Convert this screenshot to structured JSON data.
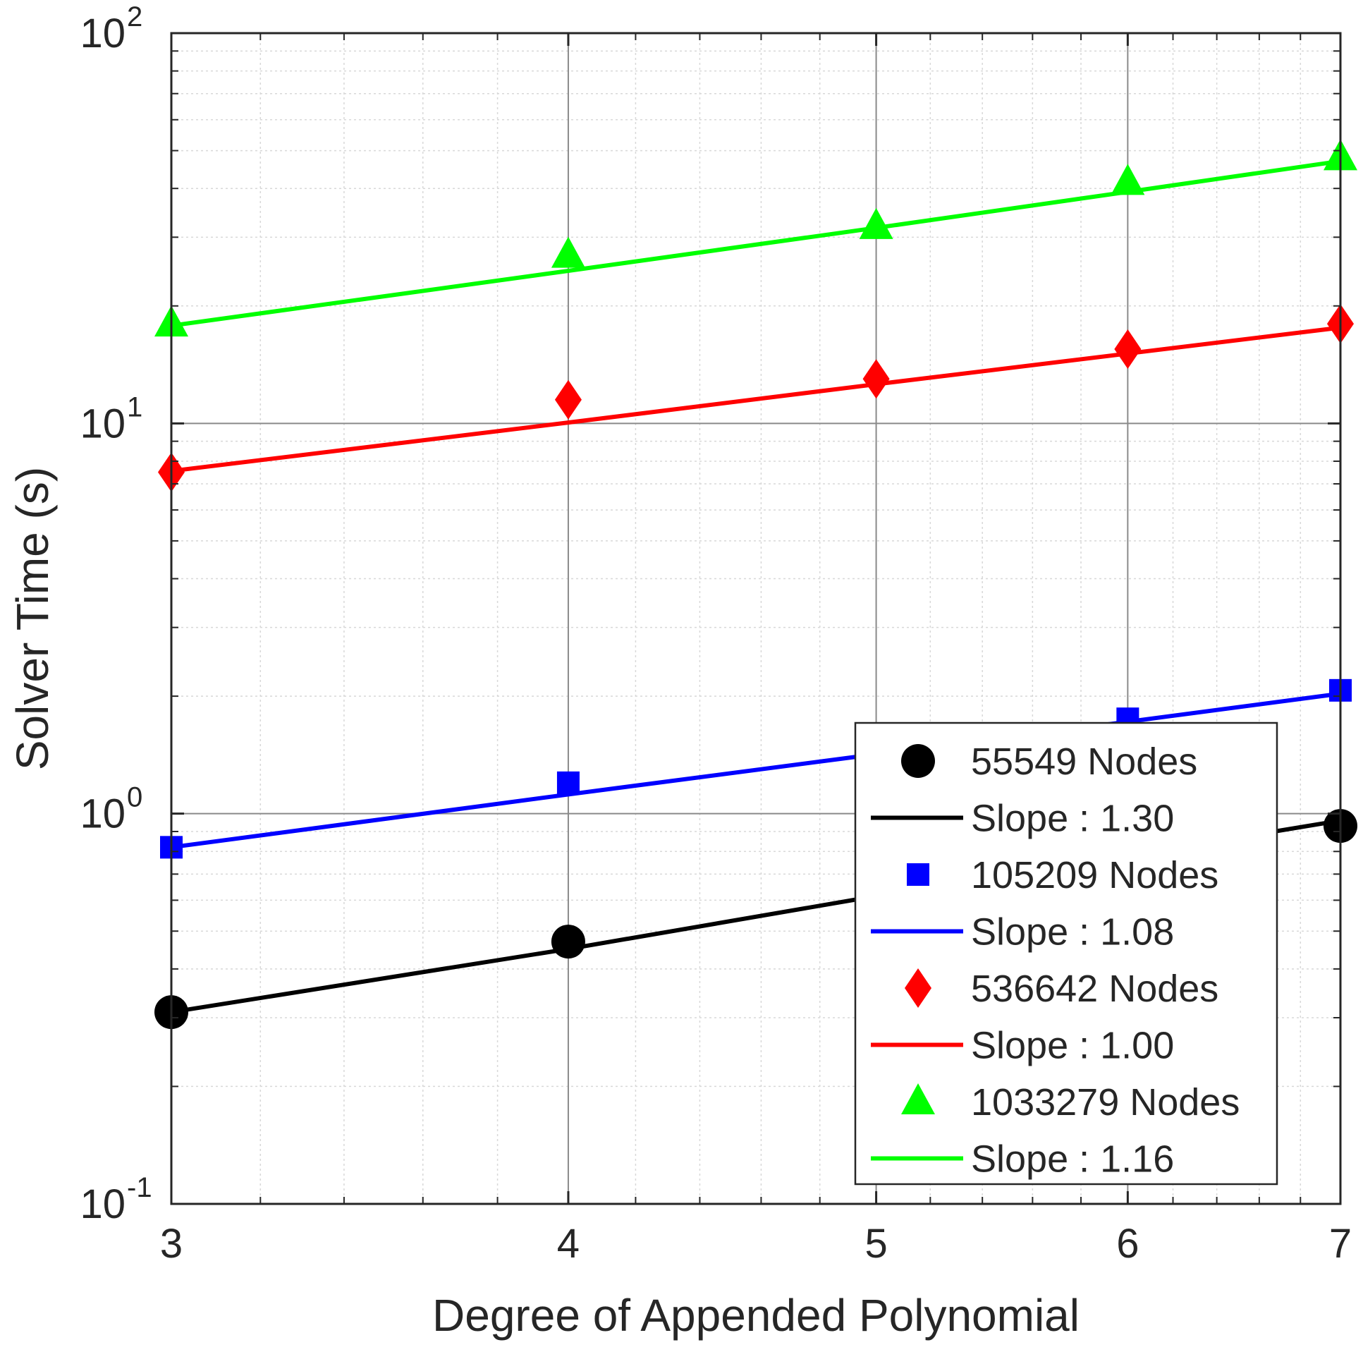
{
  "chart_data": {
    "type": "scatter",
    "xlabel": "Degree of Appended Polynomial",
    "ylabel": "Solver Time (s)",
    "x_scale": "log",
    "y_scale": "log",
    "xlim": [
      3,
      7
    ],
    "ylim": [
      0.1,
      100
    ],
    "xticks": [
      3,
      4,
      5,
      6,
      7
    ],
    "xtick_labels": [
      "3",
      "4",
      "5",
      "6",
      "7"
    ],
    "yticks": [
      0.1,
      1,
      10,
      100
    ],
    "ytick_labels": [
      {
        "base": "10",
        "exp": "-1"
      },
      {
        "base": "10",
        "exp": "0"
      },
      {
        "base": "10",
        "exp": "1"
      },
      {
        "base": "10",
        "exp": "2"
      }
    ],
    "grid": true,
    "minor_grid": true,
    "legend_position": "bottom-right",
    "x": [
      3,
      4,
      5,
      6,
      7
    ],
    "series": [
      {
        "name": "55549 Nodes",
        "marker": "circle",
        "color": "#000000",
        "values": [
          0.31,
          0.47,
          0.6,
          0.77,
          0.93
        ],
        "fit_name": "Slope : 1.30",
        "fit_values": [
          0.31,
          0.45,
          0.615,
          0.78,
          0.96
        ]
      },
      {
        "name": "105209 Nodes",
        "marker": "square",
        "color": "#0000ff",
        "values": [
          0.82,
          1.2,
          1.5,
          1.75,
          2.07
        ],
        "fit_name": "Slope : 1.08",
        "fit_values": [
          0.82,
          1.12,
          1.42,
          1.72,
          2.03
        ]
      },
      {
        "name": "536642 Nodes",
        "marker": "diamond",
        "color": "#ff0000",
        "values": [
          7.5,
          11.5,
          13.0,
          15.5,
          18.0
        ],
        "fit_name": "Slope : 1.00",
        "fit_values": [
          7.55,
          10.05,
          12.6,
          15.1,
          17.6
        ]
      },
      {
        "name": "1033279 Nodes",
        "marker": "triangle",
        "color": "#00ff00",
        "values": [
          18.0,
          27.0,
          32.0,
          41.5,
          48.0
        ],
        "fit_name": "Slope : 1.16",
        "fit_values": [
          17.8,
          24.6,
          31.7,
          39.2,
          47.0
        ]
      }
    ]
  }
}
